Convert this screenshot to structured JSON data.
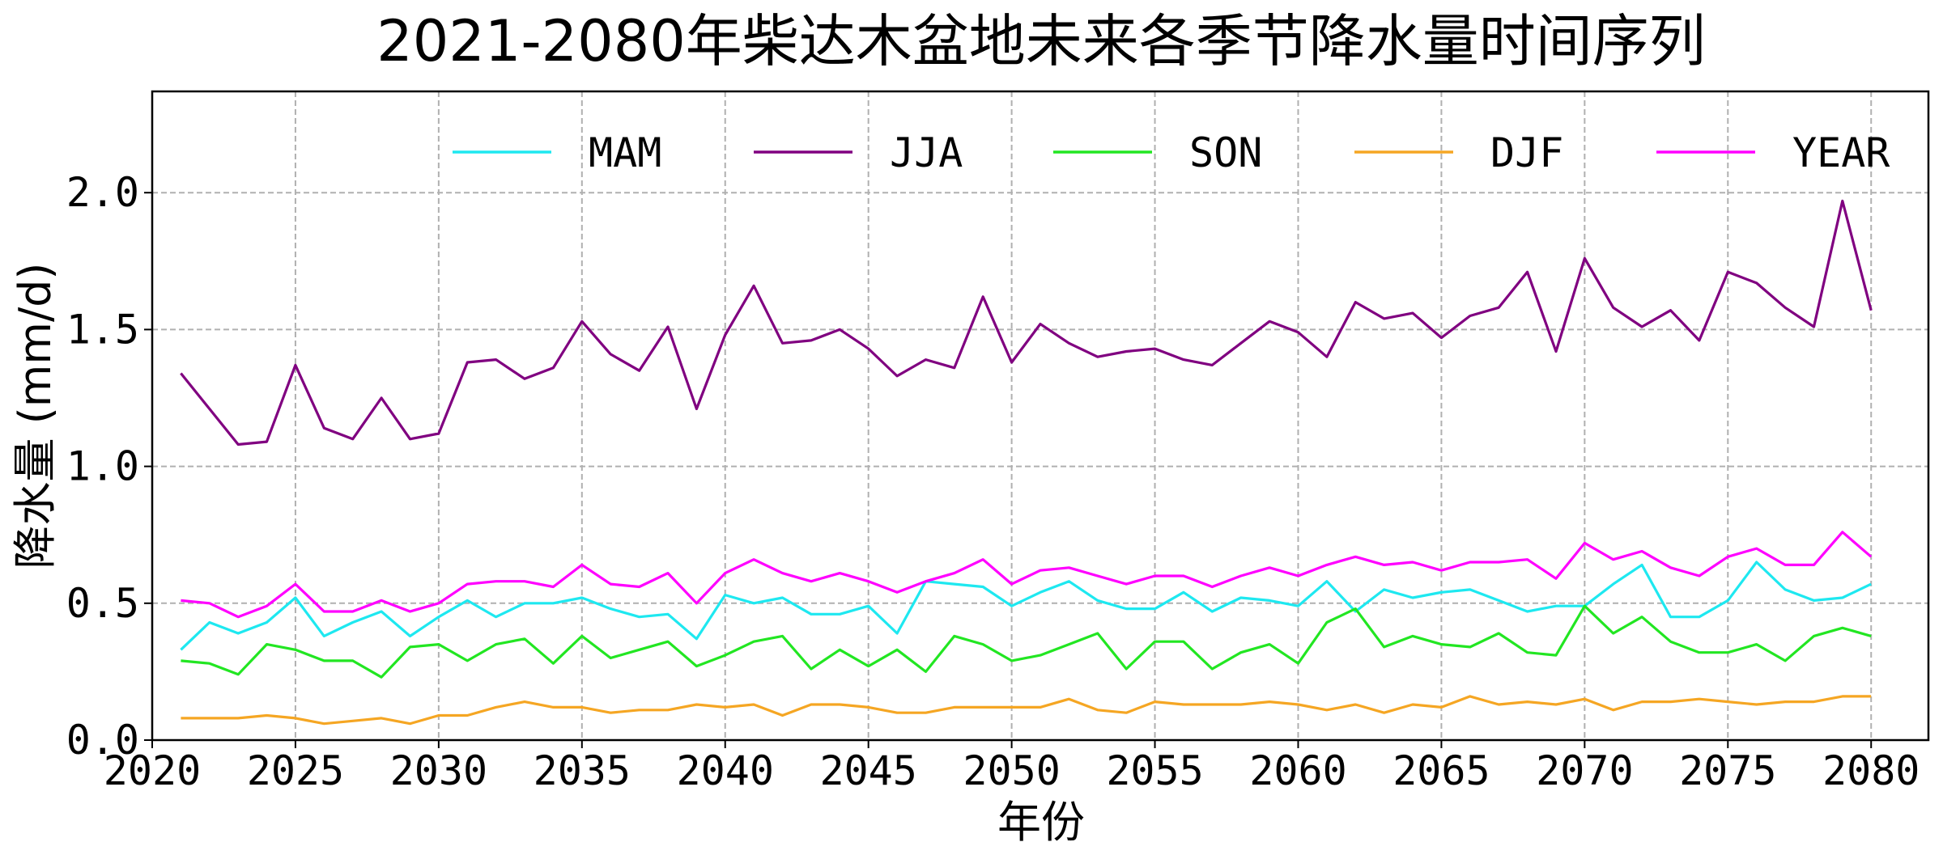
{
  "chart_data": {
    "type": "line",
    "title": "2021-2080年柴达木盆地未来各季节降水量时间序列",
    "xlabel": "年份",
    "ylabel": "降水量 (mm/d)",
    "xlim": [
      2020,
      2082
    ],
    "ylim": [
      0,
      2.37
    ],
    "xticks": [
      2020,
      2025,
      2030,
      2035,
      2040,
      2045,
      2050,
      2055,
      2060,
      2065,
      2070,
      2075,
      2080
    ],
    "yticks": [
      "0.0",
      "0.5",
      "1.0",
      "1.5",
      "2.0"
    ],
    "grid": true,
    "legend_placement": "top",
    "x_start": 2021,
    "series": [
      {
        "name": "MAM",
        "color": "#1ee8f0",
        "values": [
          0.33,
          0.43,
          0.39,
          0.43,
          0.52,
          0.38,
          0.43,
          0.47,
          0.38,
          0.45,
          0.51,
          0.45,
          0.5,
          0.5,
          0.52,
          0.48,
          0.45,
          0.46,
          0.37,
          0.53,
          0.5,
          0.52,
          0.46,
          0.46,
          0.49,
          0.39,
          0.58,
          0.57,
          0.56,
          0.49,
          0.54,
          0.58,
          0.51,
          0.48,
          0.48,
          0.54,
          0.47,
          0.52,
          0.51,
          0.49,
          0.58,
          0.47,
          0.55,
          0.52,
          0.54,
          0.55,
          0.51,
          0.47,
          0.49,
          0.49,
          0.57,
          0.64,
          0.45,
          0.45,
          0.51,
          0.65,
          0.55,
          0.51,
          0.52,
          0.57
        ]
      },
      {
        "name": "JJA",
        "color": "#800080",
        "values": [
          1.34,
          1.21,
          1.08,
          1.09,
          1.37,
          1.14,
          1.1,
          1.25,
          1.1,
          1.12,
          1.38,
          1.39,
          1.32,
          1.36,
          1.53,
          1.41,
          1.35,
          1.51,
          1.21,
          1.48,
          1.66,
          1.45,
          1.46,
          1.5,
          1.43,
          1.33,
          1.39,
          1.36,
          1.62,
          1.38,
          1.52,
          1.45,
          1.4,
          1.42,
          1.43,
          1.39,
          1.37,
          1.45,
          1.53,
          1.49,
          1.4,
          1.6,
          1.54,
          1.56,
          1.47,
          1.55,
          1.58,
          1.71,
          1.42,
          1.76,
          1.58,
          1.51,
          1.57,
          1.46,
          1.71,
          1.67,
          1.58,
          1.51,
          1.97,
          1.57
        ]
      },
      {
        "name": "SON",
        "color": "#22e622",
        "values": [
          0.29,
          0.28,
          0.24,
          0.35,
          0.33,
          0.29,
          0.29,
          0.23,
          0.34,
          0.35,
          0.29,
          0.35,
          0.37,
          0.28,
          0.38,
          0.3,
          0.33,
          0.36,
          0.27,
          0.31,
          0.36,
          0.38,
          0.26,
          0.33,
          0.27,
          0.33,
          0.25,
          0.38,
          0.35,
          0.29,
          0.31,
          0.35,
          0.39,
          0.26,
          0.36,
          0.36,
          0.26,
          0.32,
          0.35,
          0.28,
          0.43,
          0.48,
          0.34,
          0.38,
          0.35,
          0.34,
          0.39,
          0.32,
          0.31,
          0.49,
          0.39,
          0.45,
          0.36,
          0.32,
          0.32,
          0.35,
          0.29,
          0.38,
          0.41,
          0.38
        ]
      },
      {
        "name": "DJF",
        "color": "#f5a623",
        "values": [
          0.08,
          0.08,
          0.08,
          0.09,
          0.08,
          0.06,
          0.07,
          0.08,
          0.06,
          0.09,
          0.09,
          0.12,
          0.14,
          0.12,
          0.12,
          0.1,
          0.11,
          0.11,
          0.13,
          0.12,
          0.13,
          0.09,
          0.13,
          0.13,
          0.12,
          0.1,
          0.1,
          0.12,
          0.12,
          0.12,
          0.12,
          0.15,
          0.11,
          0.1,
          0.14,
          0.13,
          0.13,
          0.13,
          0.14,
          0.13,
          0.11,
          0.13,
          0.1,
          0.13,
          0.12,
          0.16,
          0.13,
          0.14,
          0.13,
          0.15,
          0.11,
          0.14,
          0.14,
          0.15,
          0.14,
          0.13,
          0.14,
          0.14,
          0.16,
          0.16
        ]
      },
      {
        "name": "YEAR",
        "color": "#ff00ff",
        "values": [
          0.51,
          0.5,
          0.45,
          0.49,
          0.57,
          0.47,
          0.47,
          0.51,
          0.47,
          0.5,
          0.57,
          0.58,
          0.58,
          0.56,
          0.64,
          0.57,
          0.56,
          0.61,
          0.5,
          0.61,
          0.66,
          0.61,
          0.58,
          0.61,
          0.58,
          0.54,
          0.58,
          0.61,
          0.66,
          0.57,
          0.62,
          0.63,
          0.6,
          0.57,
          0.6,
          0.6,
          0.56,
          0.6,
          0.63,
          0.6,
          0.64,
          0.67,
          0.64,
          0.65,
          0.62,
          0.65,
          0.65,
          0.66,
          0.59,
          0.72,
          0.66,
          0.69,
          0.63,
          0.6,
          0.67,
          0.7,
          0.64,
          0.64,
          0.76,
          0.67
        ]
      }
    ]
  }
}
